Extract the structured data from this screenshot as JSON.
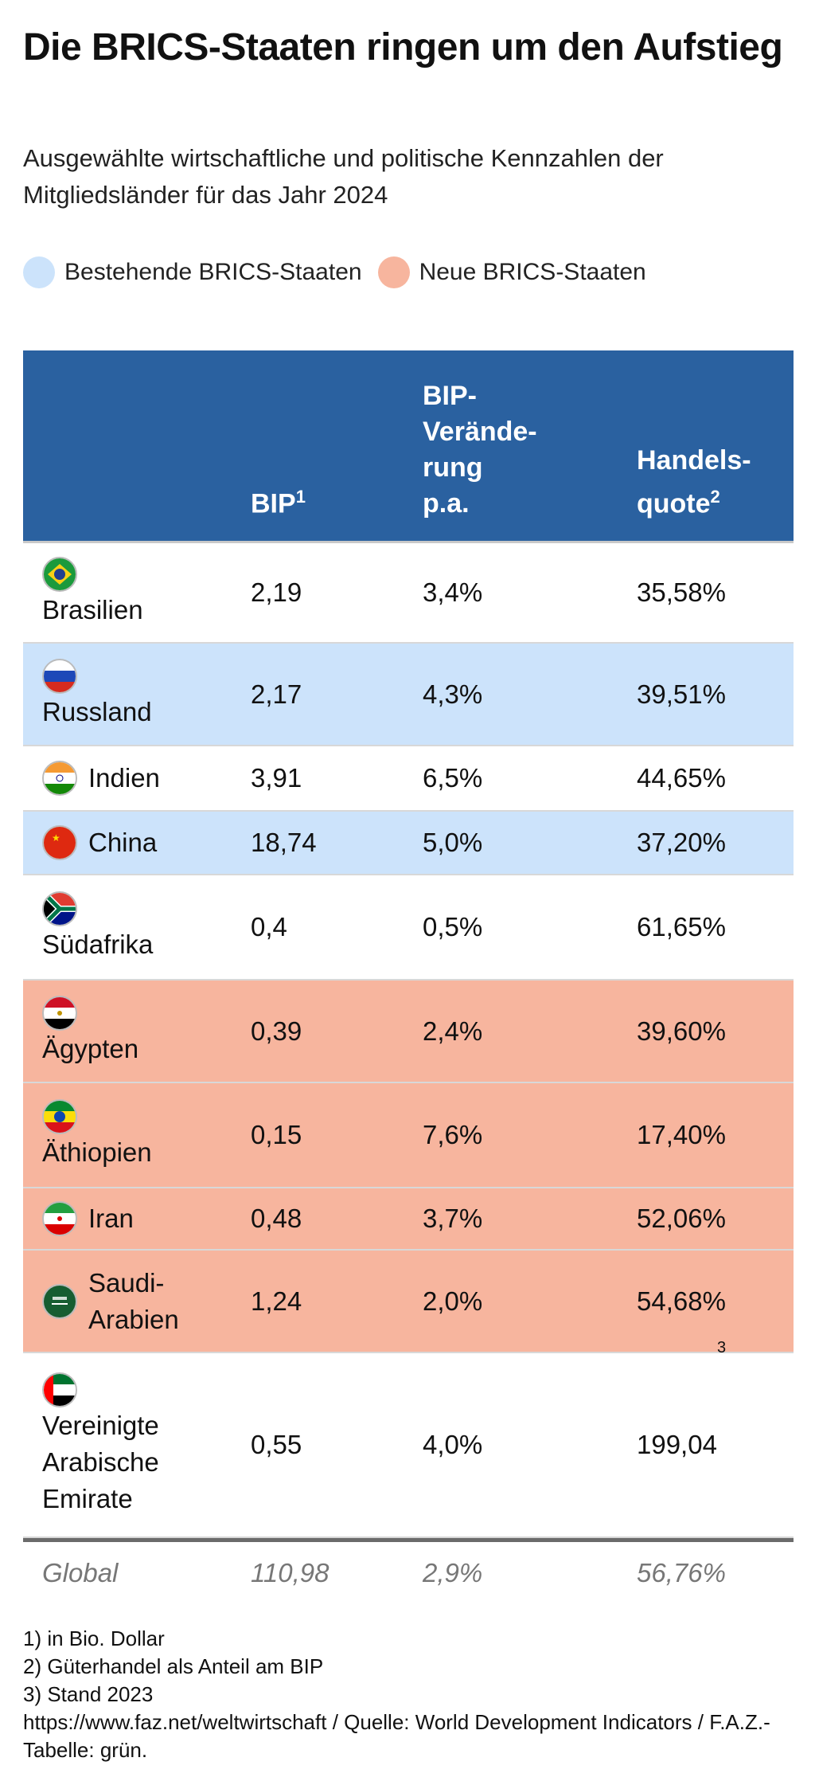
{
  "title": "Die BRICS-Staaten ringen um den Aufstieg",
  "subtitle": "Ausgewählte wirtschaftliche und politische Kennzahlen der Mitgliedsländer für das Jahr 2024",
  "legend": [
    {
      "label": "Bestehende BRICS-Staaten",
      "color": "#cce3fb"
    },
    {
      "label": "Neue BRICS-Staaten",
      "color": "#f7b59e"
    }
  ],
  "colors": {
    "header": "#2a61a0",
    "existing": "#cce3fb",
    "new": "#f7b59e"
  },
  "headers": {
    "bip": "BIP",
    "bip_note": "1",
    "change": "BIP-\nVerände-\nrung\np.a.",
    "trade": "Handels-\nquote",
    "trade_note": "2"
  },
  "rows": [
    {
      "country": "Brasilien",
      "flag": "brazil-flag",
      "group": "white",
      "bip": "2,19",
      "change": "3,4%",
      "trade": "35,58%"
    },
    {
      "country": "Russland",
      "flag": "russia-flag",
      "group": "existing",
      "bip": "2,17",
      "change": "4,3%",
      "trade": "39,51%"
    },
    {
      "country": "Indien",
      "flag": "india-flag",
      "group": "white",
      "bip": "3,91",
      "change": "6,5%",
      "trade": "44,65%"
    },
    {
      "country": "China",
      "flag": "china-flag",
      "group": "existing",
      "bip": "18,74",
      "change": "5,0%",
      "trade": "37,20%"
    },
    {
      "country": "Südafrika",
      "flag": "south-africa-flag",
      "group": "white",
      "bip": "0,4",
      "change": "0,5%",
      "trade": "61,65%"
    },
    {
      "country": "Ägypten",
      "flag": "egypt-flag",
      "group": "new",
      "bip": "0,39",
      "change": "2,4%",
      "trade": "39,60%"
    },
    {
      "country": "Äthiopien",
      "flag": "ethiopia-flag",
      "group": "new",
      "bip": "0,15",
      "change": "7,6%",
      "trade": "17,40%"
    },
    {
      "country": "Iran",
      "flag": "iran-flag",
      "group": "new",
      "bip": "0,48",
      "change": "3,7%",
      "trade": "52,06%"
    },
    {
      "country": "Saudi-\nArabien",
      "flag": "saudi-arabia-flag",
      "group": "new",
      "bip": "1,24",
      "change": "2,0%",
      "trade": "54,68%"
    },
    {
      "country": "Vereinigte\nArabische\nEmirate",
      "flag": "uae-flag",
      "group": "white",
      "bip": "0,55",
      "change": "4,0%",
      "trade": "199,04",
      "trade_note": "3"
    }
  ],
  "global": {
    "label": "Global",
    "bip": "110,98",
    "change": "2,9%",
    "trade": "56,76%"
  },
  "footnotes": [
    "1) in Bio. Dollar",
    "2) Güterhandel als Anteil am BIP",
    "3) Stand 2023",
    "https://www.faz.net/weltwirtschaft / Quelle: World Development Indicators / F.A.Z.-Tabelle: grün."
  ]
}
